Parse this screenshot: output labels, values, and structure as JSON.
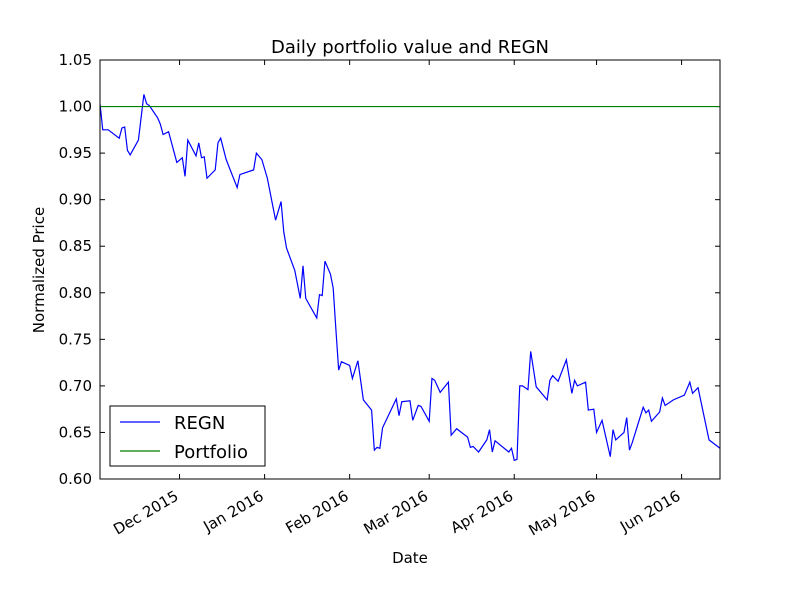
{
  "chart_data": {
    "type": "line",
    "title": "Daily portfolio value and REGN",
    "x_label": "Date",
    "y_label": "Normalized Price",
    "xlim": [
      0,
      226
    ],
    "xticks": [
      {
        "value": 29,
        "label": "Dec 2015"
      },
      {
        "value": 60,
        "label": "Jan 2016"
      },
      {
        "value": 91,
        "label": "Feb 2016"
      },
      {
        "value": 120,
        "label": "Mar 2016"
      },
      {
        "value": 151,
        "label": "Apr 2016"
      },
      {
        "value": 181,
        "label": "May 2016"
      },
      {
        "value": 212,
        "label": "Jun 2016"
      }
    ],
    "ylim": [
      0.6,
      1.05
    ],
    "yticks": [
      {
        "value": 0.6,
        "label": "0.60"
      },
      0.65,
      {
        "value": 0.7,
        "label": "0.70"
      },
      0.75,
      {
        "value": 0.8,
        "label": "0.80"
      },
      0.85,
      {
        "value": 0.9,
        "label": "0.90"
      },
      0.95,
      {
        "value": 1,
        "label": "1.00"
      },
      1.05
    ],
    "legend": "lower left",
    "series": [
      {
        "name": "REGN",
        "color": "#0000ff",
        "x": [
          0,
          1,
          3,
          7,
          8,
          9,
          10,
          11,
          14,
          16,
          17,
          18,
          21,
          22,
          23,
          25,
          28,
          30,
          31,
          32,
          35,
          36,
          37,
          38,
          39,
          42,
          43,
          44,
          46,
          50,
          51,
          56,
          57,
          59,
          61,
          64,
          66,
          67,
          68,
          71,
          73,
          74,
          75,
          79,
          80,
          81,
          82,
          84,
          85,
          86,
          87,
          88,
          91,
          92,
          94,
          96,
          99,
          100,
          101,
          102,
          103,
          108,
          109,
          110,
          113,
          114,
          116,
          117,
          120,
          121,
          122,
          124,
          127,
          128,
          130,
          134,
          135,
          136,
          138,
          141,
          142,
          143,
          144,
          149,
          150,
          151,
          152,
          153,
          154,
          156,
          157,
          159,
          163,
          164,
          165,
          167,
          170,
          172,
          173,
          174,
          177,
          178,
          180,
          181,
          183,
          186,
          187,
          188,
          191,
          192,
          193,
          194,
          198,
          199,
          200,
          201,
          204,
          205,
          206,
          209,
          213,
          215,
          216,
          218,
          220,
          222,
          226
        ],
        "values": [
          1.003,
          0.975,
          0.975,
          0.966,
          0.977,
          0.978,
          0.953,
          0.948,
          0.964,
          1.013,
          1.003,
          1.001,
          0.988,
          0.981,
          0.97,
          0.973,
          0.94,
          0.945,
          0.925,
          0.964,
          0.947,
          0.961,
          0.945,
          0.946,
          0.923,
          0.932,
          0.961,
          0.966,
          0.943,
          0.913,
          0.927,
          0.932,
          0.95,
          0.943,
          0.923,
          0.878,
          0.898,
          0.865,
          0.848,
          0.824,
          0.794,
          0.829,
          0.794,
          0.773,
          0.798,
          0.797,
          0.834,
          0.82,
          0.805,
          0.76,
          0.717,
          0.726,
          0.722,
          0.708,
          0.727,
          0.685,
          0.674,
          0.631,
          0.634,
          0.633,
          0.655,
          0.686,
          0.668,
          0.683,
          0.684,
          0.663,
          0.679,
          0.678,
          0.662,
          0.708,
          0.706,
          0.693,
          0.704,
          0.647,
          0.654,
          0.645,
          0.634,
          0.635,
          0.629,
          0.642,
          0.653,
          0.629,
          0.641,
          0.629,
          0.633,
          0.62,
          0.621,
          0.7,
          0.7,
          0.696,
          0.737,
          0.699,
          0.685,
          0.706,
          0.711,
          0.705,
          0.728,
          0.692,
          0.706,
          0.7,
          0.704,
          0.674,
          0.675,
          0.65,
          0.663,
          0.624,
          0.653,
          0.642,
          0.65,
          0.666,
          0.631,
          0.639,
          0.677,
          0.671,
          0.674,
          0.662,
          0.672,
          0.687,
          0.679,
          0.685,
          0.69,
          0.704,
          0.692,
          0.698,
          0.67,
          0.642,
          0.633
        ]
      },
      {
        "name": "Portfolio",
        "color": "#008000",
        "x": [
          0,
          226
        ],
        "values": [
          1.0,
          1.0
        ]
      }
    ]
  }
}
